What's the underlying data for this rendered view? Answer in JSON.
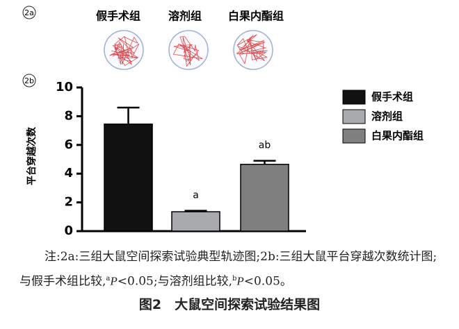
{
  "figure": {
    "panel_a": {
      "label": "2a",
      "groups": [
        "假手术组",
        "溶剂组",
        "白果内酯组"
      ]
    },
    "panel_b_label": "2b",
    "note": [
      "注:2a:三组大鼠空间探索试验典型轨迹图;2b:三组大鼠平台穿越次数统计图;与假手术组比较,",
      "a",
      "P",
      "<0.05;与溶剂组比较,",
      "b",
      "P",
      "<0.05。"
    ],
    "caption": "图2　大鼠空间探索试验结果图"
  },
  "chart_data": {
    "type": "bar",
    "ylabel": "平台穿越次数",
    "series": [
      {
        "name": "假手术组",
        "color": "#111111",
        "values": [
          7.45
        ],
        "errors": [
          1.15
        ]
      },
      {
        "name": "溶剂组",
        "color": "#a9aaae",
        "values": [
          1.35
        ],
        "errors": [
          0.07
        ],
        "annotation": "a"
      },
      {
        "name": "白果内酯组",
        "color": "#7f7f80",
        "values": [
          4.65
        ],
        "errors": [
          0.25
        ],
        "annotation": "ab"
      }
    ],
    "ylim": [
      0,
      10
    ],
    "yticks": [
      0,
      2,
      4,
      6,
      8,
      10
    ],
    "grid": false,
    "legend": "right"
  }
}
